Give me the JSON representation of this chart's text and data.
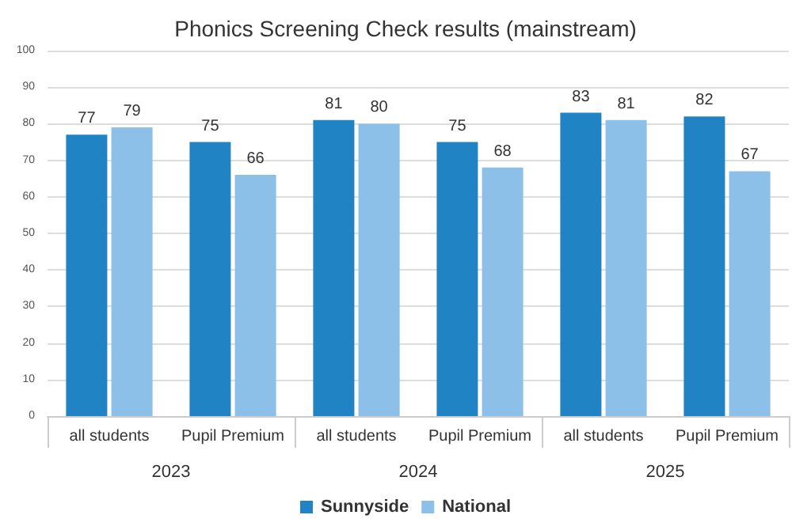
{
  "chart_data": {
    "type": "bar",
    "title": "Phonics Screening Check results (mainstream)",
    "categories": [
      "all students",
      "Pupil Premium",
      "all students",
      "Pupil Premium",
      "all students",
      "Pupil Premium"
    ],
    "annotations": [
      "2023",
      "2024",
      "2025"
    ],
    "series": [
      {
        "name": "Sunnyside",
        "color": "#1f83c4",
        "values": [
          77,
          75,
          81,
          75,
          83,
          82
        ]
      },
      {
        "name": "National",
        "color": "#8cc0e8",
        "values": [
          79,
          66,
          80,
          68,
          81,
          67
        ]
      }
    ],
    "ylim": [
      0,
      100
    ],
    "yticks": [
      0,
      10,
      20,
      30,
      40,
      50,
      60,
      70,
      80,
      90,
      100
    ],
    "grid": "y",
    "legend": "bottom",
    "data_labels": true
  }
}
